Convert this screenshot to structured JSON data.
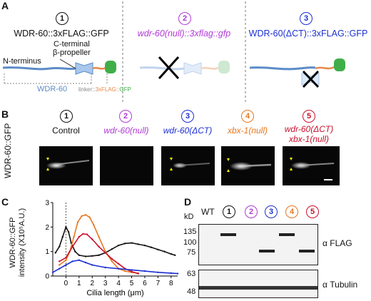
{
  "panels": {
    "A": "A",
    "B": "B",
    "C": "C",
    "D": "D"
  },
  "colors": {
    "black": "#111111",
    "purple": "#b23ad6",
    "blue": "#1c2fd1",
    "orange": "#e8771f",
    "red": "#c8102e",
    "wdr_blue": "#5b8cc7",
    "linker_orange": "#e7894a",
    "gfp_green": "#3fae49"
  },
  "panelA": {
    "titles": [
      {
        "num": "1",
        "text": "WDR-60::3xFLAG::GFP"
      },
      {
        "num": "2",
        "text": "wdr-60(null)::3xflag::gfp"
      },
      {
        "num": "3",
        "text": "WDR-60(ΔCT)::3xFLAG::GFP"
      }
    ],
    "n_terminus": "N-terminus",
    "c_terminal_line1": "C-terminal",
    "c_terminal_line2": "β-propeller",
    "wdr60": "WDR-60",
    "linker": "linker::",
    "flag": "3xFLAG::",
    "gfp": "GFP"
  },
  "panelB": {
    "ylabel": "WDR-60::GFP",
    "columns": [
      {
        "num": "1",
        "line1": "Control",
        "line2": "",
        "signal": "strong"
      },
      {
        "num": "2",
        "line1": "wdr-60(null)",
        "line2": "",
        "signal": "none"
      },
      {
        "num": "3",
        "line1": "wdr-60(ΔCT)",
        "line2": "",
        "signal": "medium"
      },
      {
        "num": "4",
        "line1": "xbx-1(null)",
        "line2": "",
        "signal": "strong"
      },
      {
        "num": "5",
        "line1": "wdr-60(ΔCT)",
        "line2": "xbx-1(null)",
        "signal": "strong"
      }
    ]
  },
  "chart_data": {
    "type": "line",
    "ylabel_line1": "WDR-60::GFP",
    "ylabel_line2": "intensity (X10⁵A.U.)",
    "xlabel": "Cilia length (μm)",
    "xlim": [
      -1,
      8.5
    ],
    "ylim": [
      0,
      3
    ],
    "xticks": [
      0,
      1,
      2,
      3,
      4,
      5,
      6,
      7,
      8
    ],
    "yticks": [
      0,
      1,
      2,
      3
    ],
    "grid": false,
    "dashed_vline_x": 0,
    "series": [
      {
        "color": "#111111",
        "points": [
          [
            -0.8,
            0.95
          ],
          [
            -0.5,
            1.2
          ],
          [
            -0.25,
            1.6
          ],
          [
            0,
            2.0
          ],
          [
            0.2,
            1.8
          ],
          [
            0.4,
            1.35
          ],
          [
            0.7,
            1.0
          ],
          [
            1.0,
            0.85
          ],
          [
            1.5,
            0.8
          ],
          [
            2.0,
            0.82
          ],
          [
            2.5,
            0.85
          ],
          [
            3.0,
            0.95
          ],
          [
            3.5,
            1.1
          ],
          [
            4.0,
            1.25
          ],
          [
            4.5,
            1.33
          ],
          [
            5.0,
            1.35
          ],
          [
            5.5,
            1.3
          ],
          [
            6.0,
            1.25
          ],
          [
            6.5,
            1.17
          ],
          [
            7.0,
            1.08
          ],
          [
            7.5,
            1.0
          ],
          [
            8.0,
            0.9
          ],
          [
            8.3,
            0.85
          ]
        ]
      },
      {
        "color": "#e8771f",
        "points": [
          [
            -0.5,
            0.45
          ],
          [
            0,
            0.65
          ],
          [
            0.3,
            1.0
          ],
          [
            0.6,
            1.6
          ],
          [
            0.9,
            2.2
          ],
          [
            1.2,
            2.45
          ],
          [
            1.5,
            2.5
          ],
          [
            1.8,
            2.4
          ],
          [
            2.1,
            2.1
          ],
          [
            2.5,
            1.6
          ],
          [
            3.0,
            1.0
          ],
          [
            3.5,
            0.6
          ],
          [
            4.0,
            0.3
          ],
          [
            4.5,
            0.2
          ],
          [
            5.0,
            0.15
          ],
          [
            5.5,
            0.12
          ]
        ]
      },
      {
        "color": "#c8102e",
        "points": [
          [
            -0.5,
            0.6
          ],
          [
            0,
            0.75
          ],
          [
            0.5,
            1.2
          ],
          [
            1.0,
            1.6
          ],
          [
            1.3,
            1.72
          ],
          [
            1.6,
            1.7
          ],
          [
            2.0,
            1.5
          ],
          [
            2.5,
            1.2
          ],
          [
            3.0,
            0.95
          ],
          [
            3.5,
            0.7
          ],
          [
            4.0,
            0.5
          ],
          [
            4.5,
            0.3
          ],
          [
            5.0,
            0.18
          ],
          [
            5.5,
            0.1
          ]
        ]
      },
      {
        "color": "#1c2fd1",
        "points": [
          [
            -1.0,
            0.15
          ],
          [
            -0.5,
            0.3
          ],
          [
            0,
            0.45
          ],
          [
            0.5,
            0.6
          ],
          [
            1.0,
            0.65
          ],
          [
            1.5,
            0.55
          ],
          [
            2.0,
            0.45
          ],
          [
            3.0,
            0.35
          ],
          [
            4.0,
            0.3
          ],
          [
            5.0,
            0.25
          ],
          [
            6.0,
            0.2
          ],
          [
            7.0,
            0.15
          ],
          [
            8.0,
            0.12
          ],
          [
            8.5,
            0.1
          ]
        ]
      }
    ]
  },
  "panelD": {
    "kd": "kD",
    "lanes": [
      {
        "label": "WT",
        "num": ""
      },
      {
        "label": "",
        "num": "1"
      },
      {
        "label": "",
        "num": "2"
      },
      {
        "label": "",
        "num": "3"
      },
      {
        "label": "",
        "num": "4"
      },
      {
        "label": "",
        "num": "5"
      }
    ],
    "mw_top": [
      "135",
      "100",
      "75"
    ],
    "mw_bottom": [
      "63",
      "48"
    ],
    "flag_label": "α FLAG",
    "tubulin_label": "α Tubulin"
  }
}
